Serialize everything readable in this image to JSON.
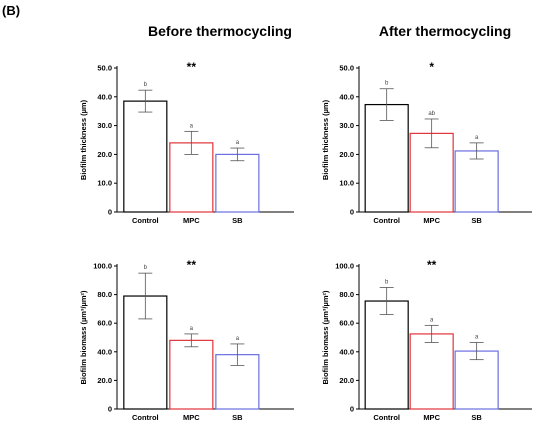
{
  "panel_label": "(B)",
  "columns": [
    "Before thermocycling",
    "After thermocycling"
  ],
  "chart_data": [
    {
      "type": "bar",
      "title": "",
      "xlabel": "",
      "ylabel": "Biofilm thickness (µm)",
      "categories": [
        "Control",
        "MPC",
        "SB"
      ],
      "values": [
        38.5,
        24.0,
        20.0
      ],
      "error": [
        3.8,
        4.0,
        2.2
      ],
      "letters": [
        "b",
        "a",
        "a"
      ],
      "significance": "**",
      "ylim": [
        0,
        50
      ],
      "yticks": [
        "0",
        "10.0",
        "20.0",
        "30.0",
        "40.0",
        "50.0"
      ],
      "grid": false
    },
    {
      "type": "bar",
      "title": "",
      "xlabel": "",
      "ylabel": "Biofilm thickness (µm)",
      "categories": [
        "Control",
        "MPC",
        "SB"
      ],
      "values": [
        37.3,
        27.3,
        21.2
      ],
      "error": [
        5.5,
        5.0,
        2.8
      ],
      "letters": [
        "b",
        "ab",
        "a"
      ],
      "significance": "*",
      "ylim": [
        0,
        50
      ],
      "yticks": [
        "0",
        "10.0",
        "20.0",
        "30.0",
        "40.0",
        "50.0"
      ],
      "grid": false
    },
    {
      "type": "bar",
      "title": "",
      "xlabel": "",
      "ylabel": "Biofilm biomass (µm³/µm²)",
      "categories": [
        "Control",
        "MPC",
        "SB"
      ],
      "values": [
        79.0,
        48.0,
        38.0
      ],
      "error": [
        16.0,
        4.5,
        7.5
      ],
      "letters": [
        "b",
        "a",
        "a"
      ],
      "significance": "**",
      "ylim": [
        0,
        100
      ],
      "yticks": [
        "0",
        "20.0",
        "40.0",
        "60.0",
        "80.0",
        "100.0"
      ],
      "grid": false
    },
    {
      "type": "bar",
      "title": "",
      "xlabel": "",
      "ylabel": "Biofilm biomass (µm³/µm²)",
      "categories": [
        "Control",
        "MPC",
        "SB"
      ],
      "values": [
        75.5,
        52.5,
        40.5
      ],
      "error": [
        9.5,
        6.0,
        6.0
      ],
      "letters": [
        "b",
        "a",
        "a"
      ],
      "significance": "**",
      "ylim": [
        0,
        100
      ],
      "yticks": [
        "0",
        "20.0",
        "40.0",
        "60.0",
        "80.0",
        "100.0"
      ],
      "grid": false
    }
  ],
  "colors": {
    "bars": [
      "#000000",
      "#e0333a",
      "#6b6fe0"
    ],
    "axis": "#000000",
    "error": "#555555"
  }
}
